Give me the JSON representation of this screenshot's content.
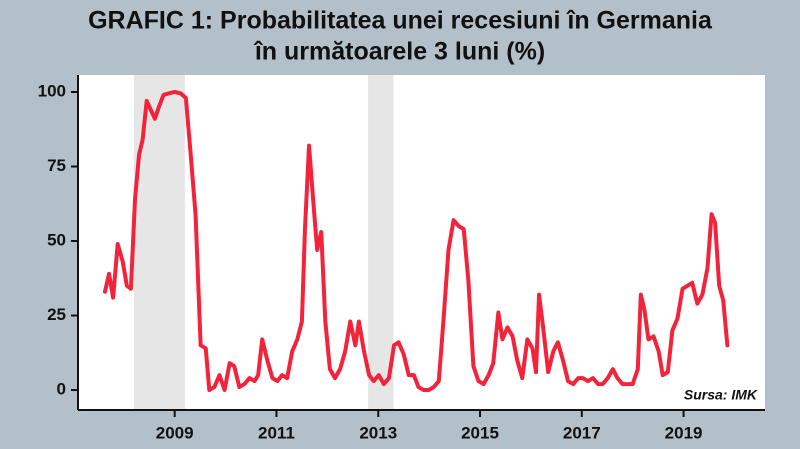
{
  "chart_data": {
    "type": "line",
    "title": [
      "GRAFIC 1: Probabilitatea unei recesiuni în Germania",
      "în următoarele 3 luni (%)"
    ],
    "annotation": "Sursa: IMK",
    "xlim": [
      2007.1,
      2020.6
    ],
    "ylim": [
      -6.7,
      105.7
    ],
    "xticks": [
      2009,
      2011,
      2013,
      2015,
      2017,
      2019
    ],
    "yticks": [
      0,
      25,
      50,
      75,
      100
    ],
    "grid": false,
    "shade_color": "#e6e6e6",
    "shaded_periods": [
      [
        2008.2,
        2009.2
      ],
      [
        2012.8,
        2013.3
      ]
    ],
    "series": [
      {
        "color": "#f2233a",
        "x": [
          2007.63,
          2007.71,
          2007.79,
          2007.88,
          2007.98,
          2008.06,
          2008.14,
          2008.22,
          2008.3,
          2008.37,
          2008.45,
          2008.53,
          2008.61,
          2008.69,
          2008.78,
          2008.88,
          2009.0,
          2009.12,
          2009.22,
          2009.31,
          2009.41,
          2009.51,
          2009.61,
          2009.68,
          2009.78,
          2009.88,
          2009.98,
          2010.08,
          2010.17,
          2010.27,
          2010.37,
          2010.47,
          2010.57,
          2010.64,
          2010.72,
          2010.82,
          2010.92,
          2011.02,
          2011.11,
          2011.21,
          2011.31,
          2011.41,
          2011.5,
          2011.56,
          2011.64,
          2011.72,
          2011.8,
          2011.88,
          2011.96,
          2012.05,
          2012.15,
          2012.25,
          2012.35,
          2012.45,
          2012.55,
          2012.62,
          2012.72,
          2012.82,
          2012.91,
          2013.01,
          2013.11,
          2013.21,
          2013.31,
          2013.4,
          2013.5,
          2013.6,
          2013.7,
          2013.79,
          2013.89,
          2013.99,
          2014.09,
          2014.19,
          2014.28,
          2014.38,
          2014.48,
          2014.58,
          2014.68,
          2014.77,
          2014.87,
          2014.97,
          2015.07,
          2015.17,
          2015.26,
          2015.36,
          2015.44,
          2015.54,
          2015.64,
          2015.73,
          2015.83,
          2015.93,
          2016.03,
          2016.1,
          2016.16,
          2016.24,
          2016.34,
          2016.44,
          2016.53,
          2016.63,
          2016.73,
          2016.83,
          2016.93,
          2017.02,
          2017.12,
          2017.22,
          2017.32,
          2017.41,
          2017.51,
          2017.61,
          2017.7,
          2017.8,
          2017.9,
          2018.0,
          2018.1,
          2018.16,
          2018.23,
          2018.31,
          2018.41,
          2018.51,
          2018.59,
          2018.69,
          2018.78,
          2018.88,
          2018.98,
          2019.08,
          2019.17,
          2019.27,
          2019.37,
          2019.47,
          2019.55,
          2019.62,
          2019.7,
          2019.78,
          2019.86
        ],
        "values": [
          33,
          39,
          31,
          49,
          43,
          35,
          34,
          64,
          79,
          84,
          97,
          94,
          91,
          95,
          99,
          99.5,
          100,
          99.5,
          98,
          80,
          59,
          15,
          14,
          0,
          1,
          5,
          0,
          9,
          8,
          1,
          2,
          4,
          3,
          5,
          17,
          10,
          4,
          3,
          5,
          4,
          13,
          17,
          23,
          54,
          82,
          64,
          47,
          53,
          23,
          7,
          4,
          7,
          13,
          23,
          15,
          23,
          13,
          5,
          3,
          5,
          2,
          4,
          15,
          16,
          12,
          5,
          5,
          1,
          0,
          0,
          1,
          3,
          23,
          47,
          57,
          55,
          54,
          37,
          8,
          3,
          2,
          5,
          9,
          26,
          17,
          21,
          18,
          10,
          4,
          17,
          14,
          6,
          32,
          21,
          6,
          13,
          16,
          10,
          3,
          2,
          4,
          4,
          3,
          4,
          2,
          2,
          4,
          7,
          4,
          2,
          2,
          2,
          7,
          32,
          27,
          17,
          18,
          13,
          5,
          6,
          20,
          24,
          34,
          35,
          36,
          29,
          32,
          41,
          59,
          56,
          35,
          30,
          15
        ]
      }
    ]
  }
}
